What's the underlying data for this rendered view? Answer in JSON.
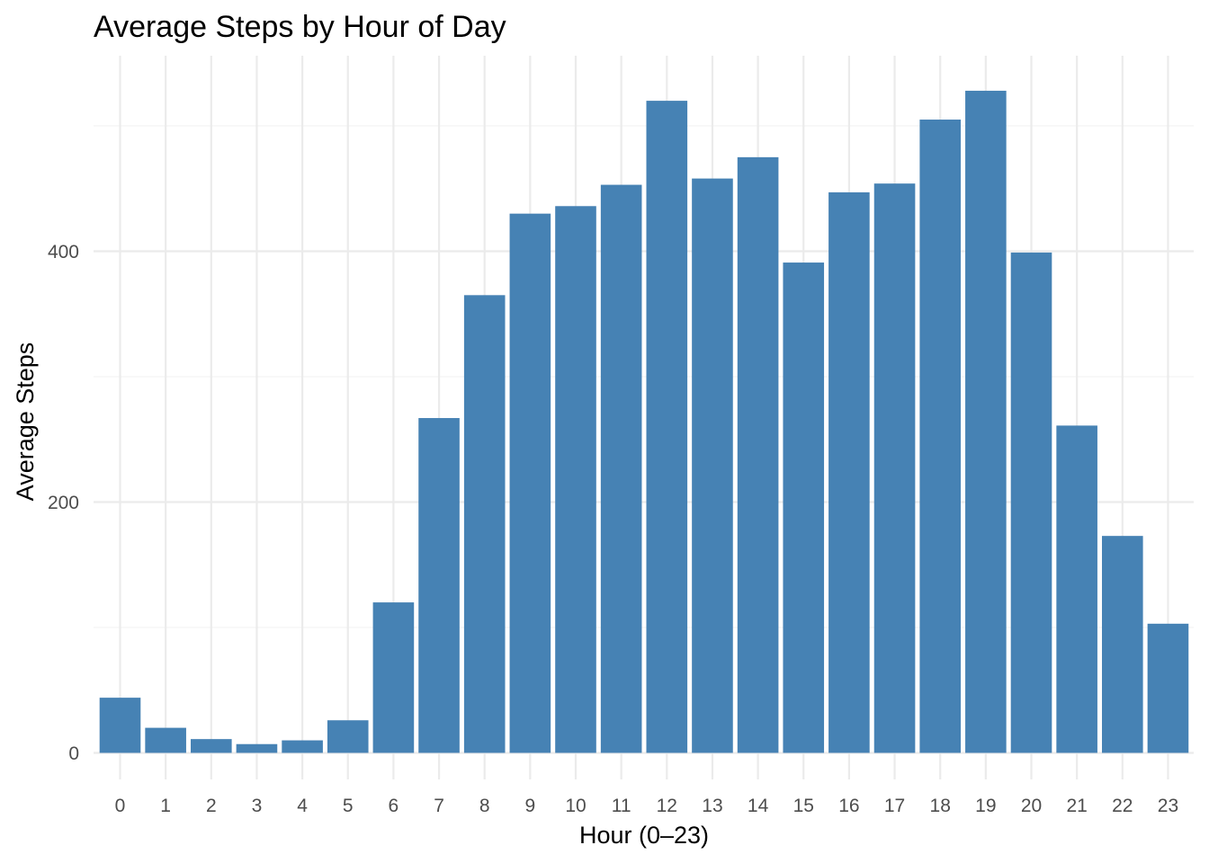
{
  "chart_data": {
    "type": "bar",
    "title": "Average Steps by Hour of Day",
    "xlabel": "Hour (0–23)",
    "ylabel": "Average Steps",
    "categories": [
      "0",
      "1",
      "2",
      "3",
      "4",
      "5",
      "6",
      "7",
      "8",
      "9",
      "10",
      "11",
      "12",
      "13",
      "14",
      "15",
      "16",
      "17",
      "18",
      "19",
      "20",
      "21",
      "22",
      "23"
    ],
    "values": [
      44,
      20,
      11,
      7,
      10,
      26,
      120,
      267,
      365,
      430,
      436,
      453,
      520,
      458,
      475,
      391,
      447,
      454,
      505,
      528,
      399,
      261,
      173,
      103
    ],
    "yticks": [
      0,
      200,
      400
    ],
    "ylim": [
      0,
      550
    ],
    "grid": true,
    "bar_color": "#4682b4"
  }
}
